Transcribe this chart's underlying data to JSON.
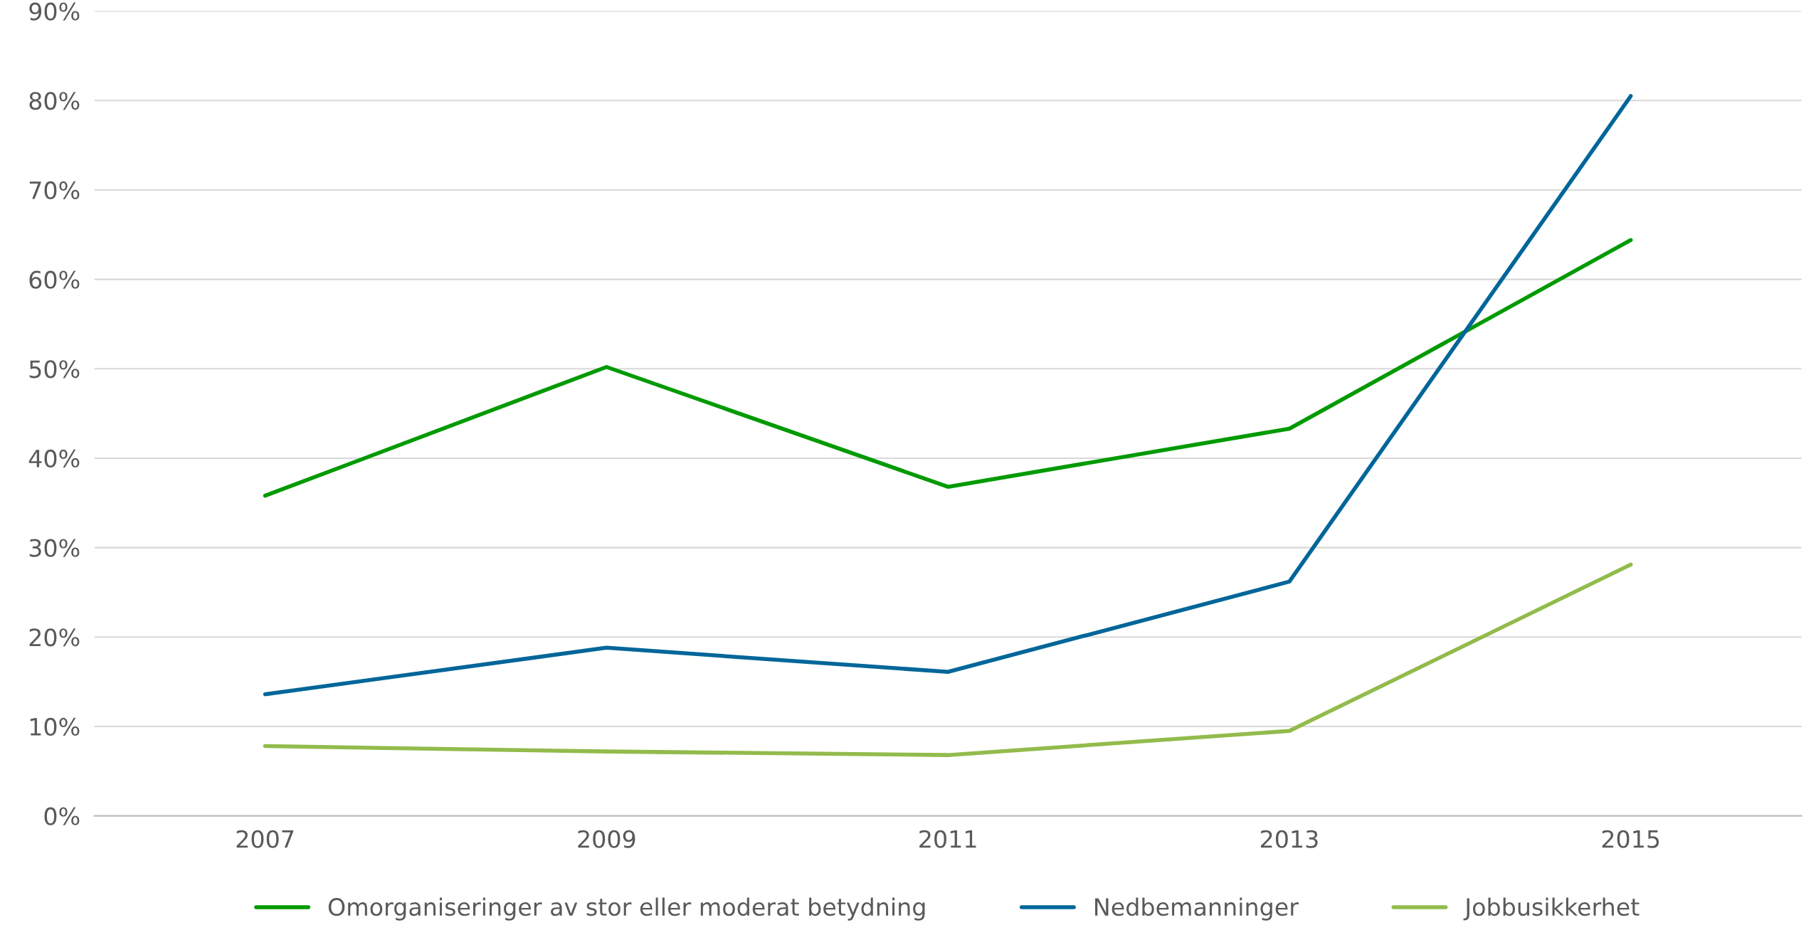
{
  "chart_data": {
    "type": "line",
    "categories": [
      "2007",
      "2009",
      "2011",
      "2013",
      "2015"
    ],
    "series": [
      {
        "name": "Omorganiseringer av stor eller moderat betydning",
        "color": "#009a00",
        "values": [
          35.8,
          50.2,
          36.8,
          43.3,
          64.4
        ]
      },
      {
        "name": "Nedbemanninger",
        "color": "#006699",
        "values": [
          13.6,
          18.8,
          16.1,
          26.2,
          80.5
        ]
      },
      {
        "name": "Jobbusikkerhet",
        "color": "#92bb4c",
        "values": [
          7.8,
          7.2,
          6.8,
          9.5,
          28.1
        ]
      }
    ],
    "ylim": [
      0,
      90
    ],
    "yticks": [
      {
        "value": 0,
        "label": "0%"
      },
      {
        "value": 10,
        "label": "10%"
      },
      {
        "value": 20,
        "label": "20%"
      },
      {
        "value": 30,
        "label": "30%"
      },
      {
        "value": 40,
        "label": "40%"
      },
      {
        "value": 50,
        "label": "50%"
      },
      {
        "value": 60,
        "label": "60%"
      },
      {
        "value": 70,
        "label": "70%"
      },
      {
        "value": 80,
        "label": "80%"
      },
      {
        "value": 90,
        "label": "90%"
      }
    ],
    "grid": "y",
    "legend": "bottom",
    "marker": "none",
    "line_style": "solid"
  }
}
